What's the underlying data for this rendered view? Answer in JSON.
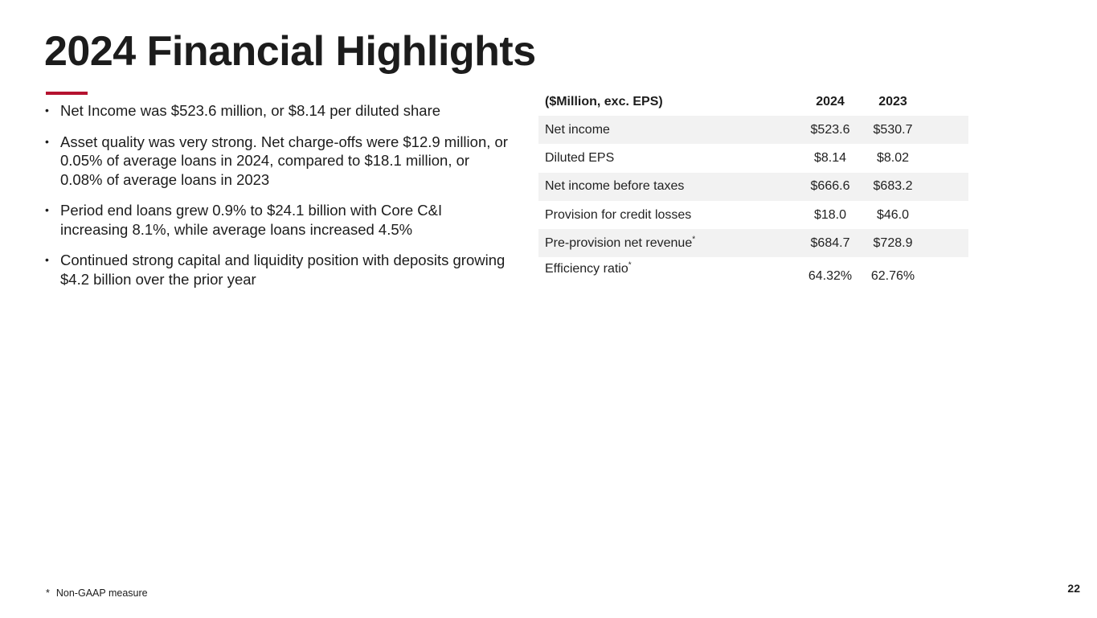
{
  "title": "2024 Financial Highlights",
  "bullets": [
    "Net Income was $523.6 million, or $8.14 per diluted share",
    "Asset quality was very strong. Net charge-offs were $12.9 million, or 0.05% of average loans in 2024, compared to $18.1 million, or 0.08% of average loans in 2023",
    "Period end loans grew 0.9% to $24.1 billion with Core C&I increasing 8.1%, while average loans increased 4.5%",
    "Continued strong capital and liquidity position with deposits growing $4.2 billion over the prior year"
  ],
  "bullet_symbol": "•",
  "table": {
    "headers": [
      "($Million, exc. EPS)",
      "2024",
      "2023"
    ],
    "rows": [
      {
        "label": "Net income",
        "v2024": "$523.6",
        "v2023": "$530.7",
        "asterisk": ""
      },
      {
        "label": "Diluted EPS",
        "v2024": "$8.14",
        "v2023": "$8.02",
        "asterisk": ""
      },
      {
        "label": "Net income before taxes",
        "v2024": "$666.6",
        "v2023": "$683.2",
        "asterisk": ""
      },
      {
        "label": "Provision for credit losses",
        "v2024": "$18.0",
        "v2023": "$46.0",
        "asterisk": ""
      },
      {
        "label": "Pre-provision net revenue",
        "v2024": "$684.7",
        "v2023": "$728.9",
        "asterisk": "*"
      },
      {
        "label": "Efficiency ratio",
        "v2024": "64.32%",
        "v2023": "62.76%",
        "asterisk": "*"
      }
    ]
  },
  "footnote": {
    "mark": "*",
    "text": "Non-GAAP measure"
  },
  "page_number": "22",
  "colors": {
    "accent": "#b5122f",
    "row_shade": "#f2f2f2",
    "text": "#1c1c1c"
  }
}
